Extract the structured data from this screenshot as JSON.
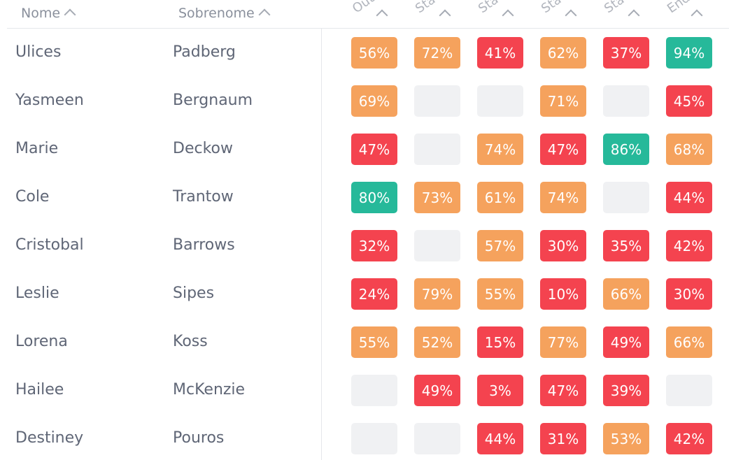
{
  "columns": {
    "first_name": "Nome",
    "last_name": "Sobrenome",
    "metrics": [
      "Outr",
      "Stav",
      "Stav",
      "Stav",
      "Stav",
      "End"
    ]
  },
  "colors": {
    "high": "#26b99a",
    "medium": "#f5a25d",
    "low": "#f4434f",
    "empty": "#f0f1f3"
  },
  "rows": [
    {
      "first": "Ulices",
      "last": "Padberg",
      "values": [
        "56%",
        "72%",
        "41%",
        "62%",
        "37%",
        "94%"
      ]
    },
    {
      "first": "Yasmeen",
      "last": "Bergnaum",
      "values": [
        "69%",
        "",
        "",
        "71%",
        "",
        "45%"
      ]
    },
    {
      "first": "Marie",
      "last": "Deckow",
      "values": [
        "47%",
        "",
        "74%",
        "47%",
        "86%",
        "68%"
      ]
    },
    {
      "first": "Cole",
      "last": "Trantow",
      "values": [
        "80%",
        "73%",
        "61%",
        "74%",
        "",
        "44%"
      ]
    },
    {
      "first": "Cristobal",
      "last": "Barrows",
      "values": [
        "32%",
        "",
        "57%",
        "30%",
        "35%",
        "42%"
      ]
    },
    {
      "first": "Leslie",
      "last": "Sipes",
      "values": [
        "24%",
        "79%",
        "55%",
        "10%",
        "66%",
        "30%"
      ]
    },
    {
      "first": "Lorena",
      "last": "Koss",
      "values": [
        "55%",
        "52%",
        "15%",
        "77%",
        "49%",
        "66%"
      ]
    },
    {
      "first": "Hailee",
      "last": "McKenzie",
      "values": [
        "",
        "49%",
        "3%",
        "47%",
        "39%",
        ""
      ]
    },
    {
      "first": "Destiney",
      "last": "Pouros",
      "values": [
        "",
        "",
        "44%",
        "31%",
        "53%",
        "42%"
      ]
    }
  ]
}
